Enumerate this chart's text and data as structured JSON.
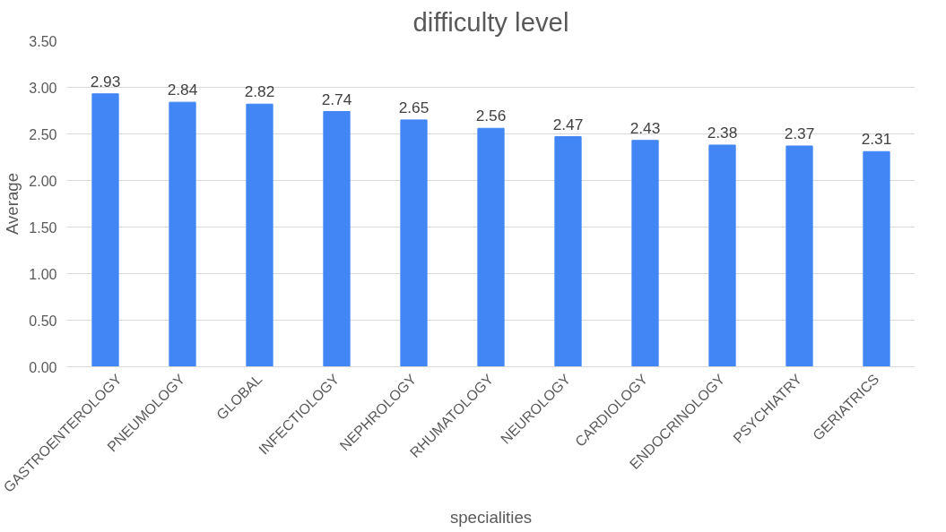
{
  "chart_data": {
    "type": "bar",
    "title": "difficulty level",
    "xlabel": "specialities",
    "ylabel": "Average",
    "categories": [
      "GASTROENTEROLOGY",
      "PNEUMOLOGY",
      "GLOBAL",
      "INFECTIOLOGY",
      "NEPHROLOGY",
      "RHUMATOLOGY",
      "NEUROLOGY",
      "CARDIOLOGY",
      "ENDOCRINOLOGY",
      "PSYCHIATRY",
      "GERIATRICS"
    ],
    "values": [
      2.93,
      2.84,
      2.82,
      2.74,
      2.65,
      2.56,
      2.47,
      2.43,
      2.38,
      2.37,
      2.31
    ],
    "color": "#4285f4",
    "ylim": [
      0,
      3.5
    ],
    "yticks": [
      {
        "value": 0,
        "label": "0.00"
      },
      {
        "value": 0.5,
        "label": "0.50"
      },
      {
        "value": 1,
        "label": "1.00"
      },
      {
        "value": 1.5,
        "label": "1.50"
      },
      {
        "value": 2,
        "label": "2.00"
      },
      {
        "value": 2.5,
        "label": "2.50"
      },
      {
        "value": 3,
        "label": "3.00"
      },
      {
        "value": 3.5,
        "label": "3.50"
      }
    ],
    "grid": "y",
    "data_labels": true
  }
}
